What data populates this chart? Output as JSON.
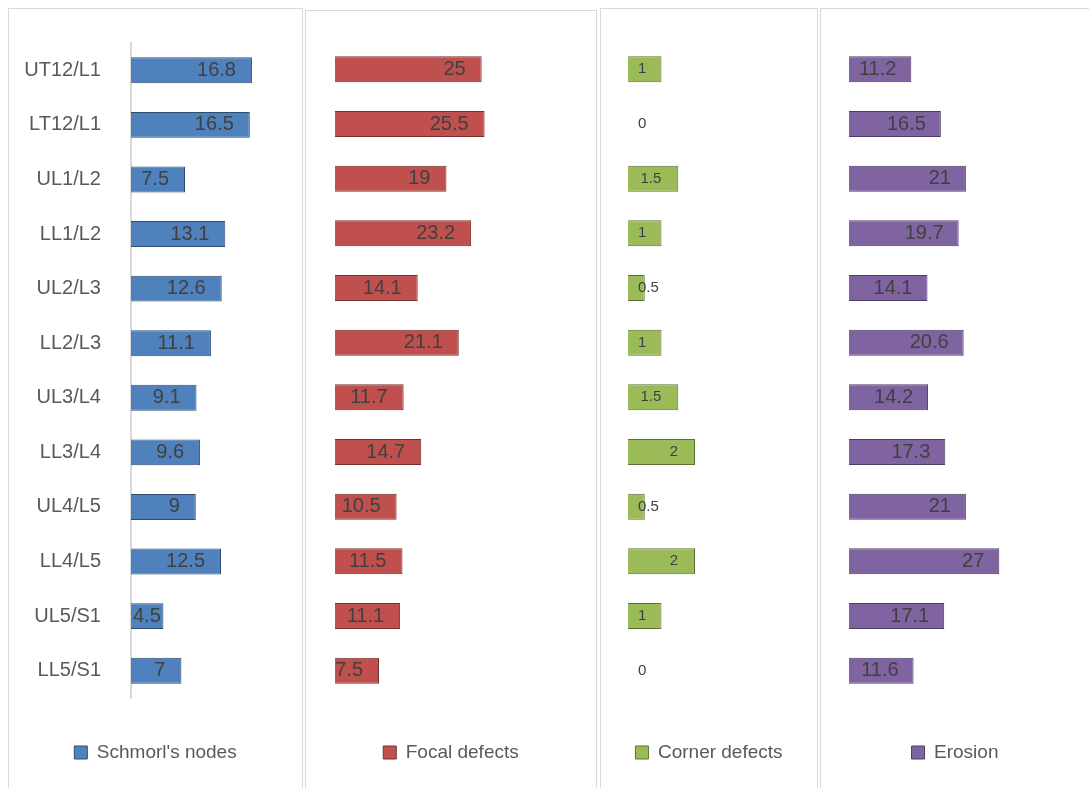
{
  "chart_data": [
    {
      "type": "bar",
      "orientation": "horizontal",
      "categories": [
        "UT12/L1",
        "LT12/L1",
        "UL1/L2",
        "LL1/L2",
        "UL2/L3",
        "LL2/L3",
        "UL3/L4",
        "LL3/L4",
        "UL4/L5",
        "LL4/L5",
        "UL5/S1",
        "LL5/S1"
      ],
      "series": [
        {
          "name": "Schmorl's nodes",
          "color": "#4f81bd",
          "values": [
            16.8,
            16.5,
            7.5,
            13.1,
            12.6,
            11.1,
            9.1,
            9.6,
            9,
            12.5,
            4.5,
            7
          ]
        }
      ],
      "tick_labels": "y",
      "data_labels": true,
      "legend": "bottom"
    },
    {
      "type": "bar",
      "orientation": "horizontal",
      "categories": [
        null,
        null,
        null,
        null,
        null,
        null,
        null,
        null,
        null,
        null,
        null,
        null
      ],
      "series": [
        {
          "name": "Focal defects",
          "color": "#c0504d",
          "values": [
            25,
            25.5,
            19,
            23.2,
            14.1,
            21.1,
            11.7,
            14.7,
            10.5,
            11.5,
            11.1,
            7.5
          ]
        }
      ],
      "tick_labels": false,
      "data_labels": true,
      "legend": "bottom"
    },
    {
      "type": "bar",
      "orientation": "horizontal",
      "categories": [
        null,
        null,
        null,
        null,
        null,
        null,
        null,
        null,
        null,
        null,
        null,
        null
      ],
      "series": [
        {
          "name": "Corner defects",
          "color": "#9bbb59",
          "values": [
            1,
            0,
            1.5,
            1,
            0.5,
            1,
            1.5,
            2,
            0.5,
            2,
            1,
            0
          ]
        }
      ],
      "tick_labels": false,
      "data_labels": true,
      "legend": "bottom"
    },
    {
      "type": "bar",
      "orientation": "horizontal",
      "categories": [
        null,
        null,
        null,
        null,
        null,
        null,
        null,
        null,
        null,
        null,
        null,
        null
      ],
      "series": [
        {
          "name": "Erosion",
          "color": "#8064a2",
          "values": [
            11.2,
            16.5,
            21,
            19.7,
            14.1,
            20.6,
            14.2,
            17.3,
            21,
            27,
            17.1,
            11.6
          ]
        }
      ],
      "tick_labels": false,
      "data_labels": true,
      "legend": "bottom"
    }
  ]
}
